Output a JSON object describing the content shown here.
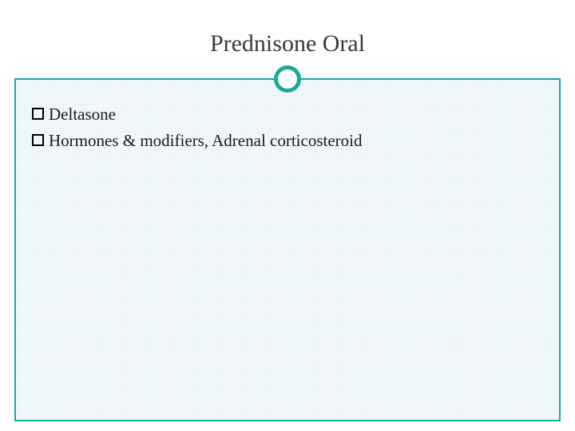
{
  "slide": {
    "title": "Prednisone Oral",
    "title_color": "#3a3a3a",
    "title_fontsize": 30,
    "accent_color": "#1ba8a0",
    "content_background": "#e8f3f4",
    "frame_border_color": "#1ba8a0",
    "bullets": [
      {
        "marker": "square-outline",
        "text": "Deltasone"
      },
      {
        "marker": "square-outline",
        "text": "Hormones & modifiers, Adrenal corticosteroid"
      }
    ],
    "bullet_fontsize": 21,
    "bullet_text_color": "#1a1a1a"
  }
}
